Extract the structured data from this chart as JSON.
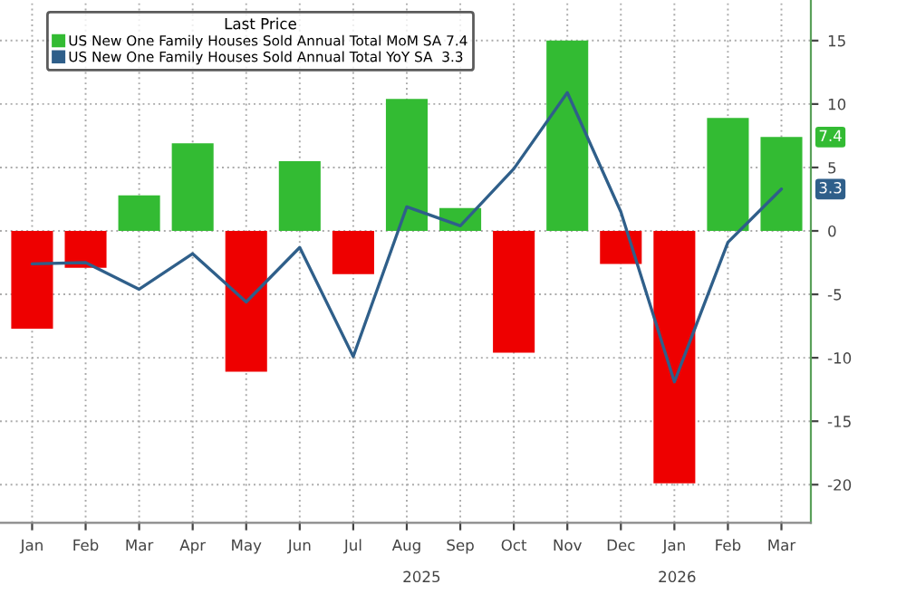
{
  "chart_data": {
    "type": "bar",
    "legend_title": "Last Price",
    "categories": [
      "Jan",
      "Feb",
      "Mar",
      "Apr",
      "May",
      "Jun",
      "Jul",
      "Aug",
      "Sep",
      "Oct",
      "Nov",
      "Dec",
      "Jan",
      "Feb",
      "Mar"
    ],
    "series": [
      {
        "name": "US New One Family Houses Sold Annual Total MoM SA 7.4",
        "color": "#33bb33",
        "colors": [
          "#ee0000",
          "#ee0000",
          "#33bb33",
          "#33bb33",
          "#ee0000",
          "#33bb33",
          "#ee0000",
          "#33bb33",
          "#33bb33",
          "#ee0000",
          "#33bb33",
          "#ee0000",
          "#ee0000",
          "#33bb33",
          "#33bb33"
        ],
        "values": [
          -7.7,
          -2.9,
          2.8,
          6.9,
          -11.1,
          5.5,
          -3.4,
          10.4,
          1.8,
          -9.6,
          15.0,
          -2.6,
          -19.9,
          8.9,
          7.4
        ]
      },
      {
        "type": "line",
        "name": "US New One Family Houses Sold Annual Total YoY SA  3.3",
        "color": "#2f5f8a",
        "values": [
          -2.6,
          -2.5,
          -4.6,
          -1.8,
          -5.6,
          -1.3,
          -9.9,
          1.9,
          0.4,
          4.9,
          10.9,
          1.5,
          -11.9,
          -0.9,
          3.3
        ]
      }
    ],
    "ylim": [
      -23,
      18.2
    ],
    "yticks": [
      -20,
      -15,
      -10,
      -5,
      0,
      5,
      10,
      15
    ],
    "grid": true,
    "legend": "top left",
    "annotations": [
      {
        "text": "7.4",
        "y": 7.4
      },
      {
        "text": "3.3",
        "y": 3.3
      },
      "2025",
      "2026"
    ]
  }
}
